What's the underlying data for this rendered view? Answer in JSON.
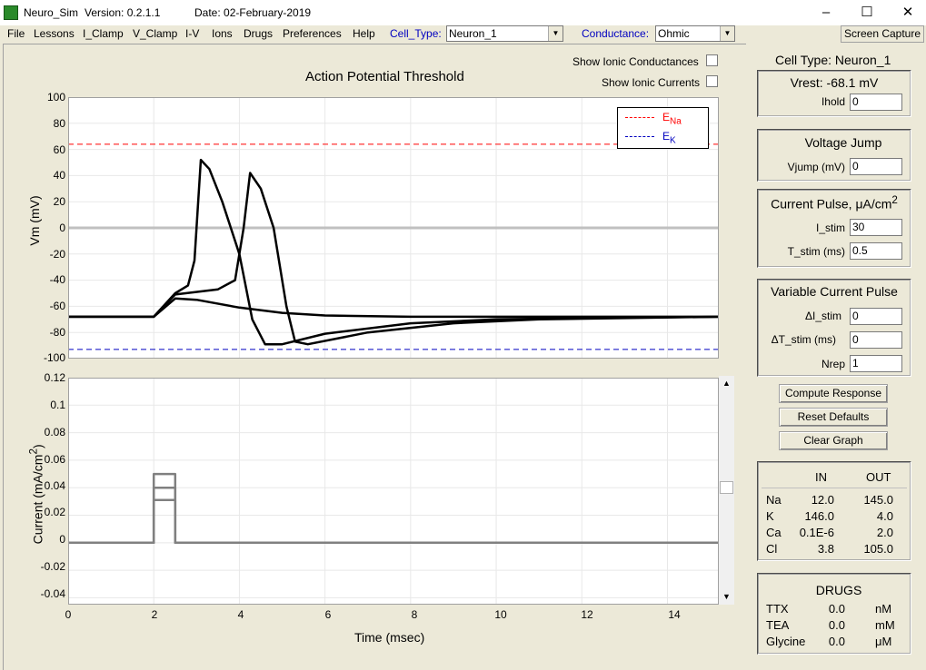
{
  "window": {
    "app_name": "Neuro_Sim",
    "version": "Version: 0.2.1.1",
    "date": "Date: 02-February-2019",
    "min_glyph": "–",
    "max_glyph": "☐",
    "close_glyph": "✕"
  },
  "menu": [
    "File",
    "Lessons",
    "I_Clamp",
    "V_Clamp",
    "I-V",
    "Ions",
    "Drugs",
    "Preferences",
    "Help"
  ],
  "cell_type": {
    "label": "Cell_Type:",
    "value": "Neuron_1"
  },
  "conductance": {
    "label": "Conductance:",
    "value": "Ohmic"
  },
  "screen_capture": "Screen Capture",
  "graph": {
    "title": "Action Potential Threshold",
    "show_ionic_conductances": "Show Ionic Conductances",
    "show_ionic_currents": "Show Ionic Currents",
    "legend": {
      "ena": "E",
      "ena_sub": "Na",
      "ek": "E",
      "ek_sub": "K"
    },
    "vm_ylabel": "Vm (mV)",
    "cur_ylabel": "Current (mA/cm",
    "cur_ylabel_sup": "2",
    "cur_ylabel_end": ")",
    "xlabel": "Time (msec)"
  },
  "chart_data": [
    {
      "type": "line",
      "title": "Action Potential Threshold",
      "xlabel": "Time (msec)",
      "ylabel": "Vm (mV)",
      "xlim": [
        0,
        15.2
      ],
      "ylim": [
        -100,
        100
      ],
      "x_ticks": [
        0,
        2,
        4,
        6,
        8,
        10,
        12,
        14
      ],
      "y_ticks": [
        100,
        80,
        60,
        40,
        20,
        0,
        -20,
        -40,
        -60,
        -80,
        -100
      ],
      "reference_lines": [
        {
          "name": "ENa",
          "y": 64,
          "color": "#ff0000"
        },
        {
          "name": "EK",
          "y": -93,
          "color": "#0000c0"
        },
        {
          "name": "zero",
          "y": 0,
          "color": "#c0c0c0"
        }
      ],
      "series": [
        {
          "name": "subthreshold",
          "color": "#000000",
          "points": [
            [
              0,
              -68
            ],
            [
              2,
              -68
            ],
            [
              2.5,
              -54
            ],
            [
              3,
              -55
            ],
            [
              4,
              -61
            ],
            [
              5,
              -65
            ],
            [
              6,
              -67
            ],
            [
              8,
              -68
            ],
            [
              15.2,
              -68
            ]
          ]
        },
        {
          "name": "spike_early",
          "color": "#000000",
          "points": [
            [
              0,
              -68
            ],
            [
              2,
              -68
            ],
            [
              2.5,
              -50
            ],
            [
              2.8,
              -44
            ],
            [
              2.95,
              -25
            ],
            [
              3.1,
              52
            ],
            [
              3.3,
              45
            ],
            [
              3.6,
              20
            ],
            [
              4,
              -20
            ],
            [
              4.3,
              -70
            ],
            [
              4.6,
              -89
            ],
            [
              5,
              -89
            ],
            [
              6,
              -81
            ],
            [
              8,
              -73
            ],
            [
              10,
              -70
            ],
            [
              12,
              -69
            ],
            [
              15.2,
              -68
            ]
          ]
        },
        {
          "name": "spike_late",
          "color": "#000000",
          "points": [
            [
              0,
              -68
            ],
            [
              2,
              -68
            ],
            [
              2.5,
              -51
            ],
            [
              3.5,
              -47
            ],
            [
              3.9,
              -40
            ],
            [
              4.1,
              0
            ],
            [
              4.25,
              42
            ],
            [
              4.5,
              30
            ],
            [
              4.8,
              0
            ],
            [
              5.1,
              -60
            ],
            [
              5.3,
              -87
            ],
            [
              5.6,
              -89
            ],
            [
              7,
              -80
            ],
            [
              9,
              -73
            ],
            [
              11,
              -70
            ],
            [
              15.2,
              -68
            ]
          ]
        }
      ]
    },
    {
      "type": "line",
      "title": "",
      "xlabel": "Time (msec)",
      "ylabel": "Current (mA/cm2)",
      "xlim": [
        0,
        15.2
      ],
      "ylim": [
        -0.045,
        0.12
      ],
      "x_ticks": [
        0,
        2,
        4,
        6,
        8,
        10,
        12,
        14
      ],
      "y_ticks": [
        0.12,
        0.1,
        0.08,
        0.06,
        0.04,
        0.02,
        0,
        -0.02,
        -0.04
      ],
      "series": [
        {
          "name": "pulse_1",
          "color": "#808080",
          "points": [
            [
              0,
              0
            ],
            [
              2,
              0
            ],
            [
              2,
              0.031
            ],
            [
              2.5,
              0.031
            ],
            [
              2.5,
              0
            ],
            [
              15.2,
              0
            ]
          ]
        },
        {
          "name": "pulse_2",
          "color": "#808080",
          "points": [
            [
              0,
              0
            ],
            [
              2,
              0
            ],
            [
              2,
              0.04
            ],
            [
              2.5,
              0.04
            ],
            [
              2.5,
              0
            ],
            [
              15.2,
              0
            ]
          ]
        },
        {
          "name": "pulse_3",
          "color": "#808080",
          "points": [
            [
              0,
              0
            ],
            [
              2,
              0
            ],
            [
              2,
              0.05
            ],
            [
              2.5,
              0.05
            ],
            [
              2.5,
              0
            ],
            [
              15.2,
              0
            ]
          ]
        }
      ]
    }
  ],
  "right_panel": {
    "cell_type_title": "Cell Type: Neuron_1",
    "vrest": "Vrest: -68.1 mV",
    "ihold_label": "Ihold",
    "ihold_value": "0",
    "voltage_jump_title": "Voltage Jump",
    "vjump_label": "Vjump (mV)",
    "vjump_value": "0",
    "current_pulse_title": "Current Pulse, μA/cm",
    "current_pulse_sup": "2",
    "istim_label": "I_stim",
    "istim_value": "30",
    "tstim_label": "T_stim (ms)",
    "tstim_value": "0.5",
    "variable_pulse_title": "Variable Current Pulse",
    "d_istim_label": "ΔI_stim",
    "d_istim_value": "0",
    "d_tstim_label": "ΔT_stim (ms)",
    "d_tstim_value": "0",
    "nrep_label": "Nrep",
    "nrep_value": "1",
    "compute_button": "Compute Response",
    "reset_button": "Reset Defaults",
    "clear_button": "Clear Graph"
  },
  "ions": {
    "in_header": "IN",
    "out_header": "OUT",
    "rows": [
      {
        "name": "Na",
        "in": "12.0",
        "out": "145.0"
      },
      {
        "name": "K",
        "in": "146.0",
        "out": "4.0"
      },
      {
        "name": "Ca",
        "in": "0.1E-6",
        "out": "2.0"
      },
      {
        "name": "Cl",
        "in": "3.8",
        "out": "105.0"
      }
    ]
  },
  "drugs": {
    "title": "DRUGS",
    "rows": [
      {
        "name": "TTX",
        "value": "0.0",
        "unit": "nM"
      },
      {
        "name": "TEA",
        "value": "0.0",
        "unit": "mM"
      },
      {
        "name": "Glycine",
        "value": "0.0",
        "unit": "μM"
      }
    ]
  }
}
